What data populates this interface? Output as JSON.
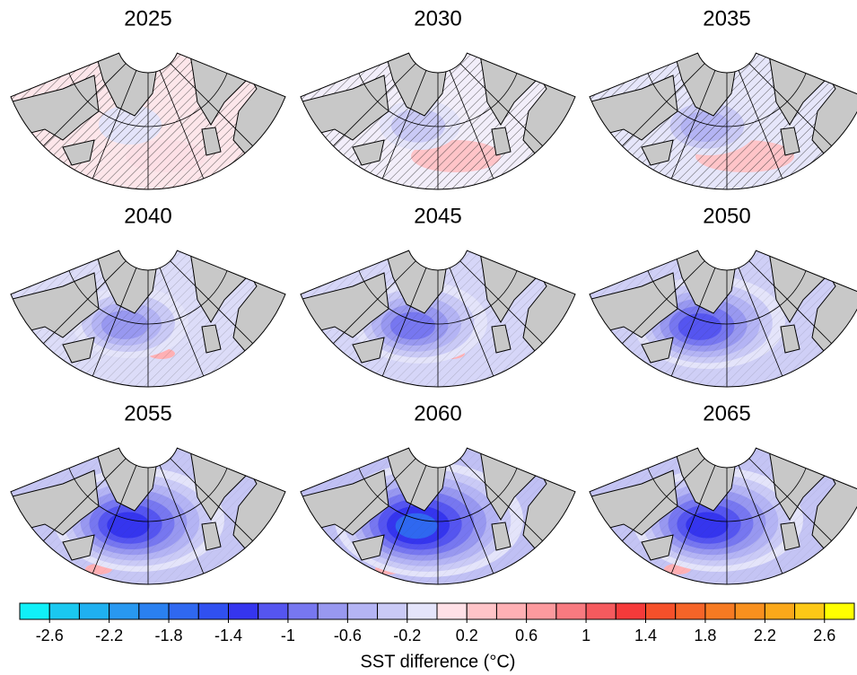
{
  "panels": [
    {
      "title": "2025"
    },
    {
      "title": "2030"
    },
    {
      "title": "2035"
    },
    {
      "title": "2040"
    },
    {
      "title": "2045"
    },
    {
      "title": "2050"
    },
    {
      "title": "2055"
    },
    {
      "title": "2060"
    },
    {
      "title": "2065"
    }
  ],
  "colorbar": {
    "title": "SST difference (°C)",
    "lim": [
      -2.8,
      2.8
    ],
    "ticks": [
      -2.6,
      -2.2,
      -1.8,
      -1.4,
      -1,
      -0.6,
      -0.2,
      0.2,
      0.6,
      1,
      1.4,
      1.8,
      2.2,
      2.6
    ],
    "colors": [
      "#10f0f8",
      "#1ac8f0",
      "#1fb0f0",
      "#2898f0",
      "#2a80f0",
      "#2f68f0",
      "#3050f0",
      "#3535ee",
      "#5555f0",
      "#7777f0",
      "#9898f0",
      "#b4b4f4",
      "#cacaf6",
      "#e4e4fa",
      "#ffe0e6",
      "#ffc4c8",
      "#ffb0b4",
      "#fc9a9e",
      "#f87a80",
      "#f55a5e",
      "#f53a3a",
      "#f5502a",
      "#f56428",
      "#f67a22",
      "#f8901e",
      "#faa81a",
      "#fcc816",
      "#ffff00"
    ]
  }
}
